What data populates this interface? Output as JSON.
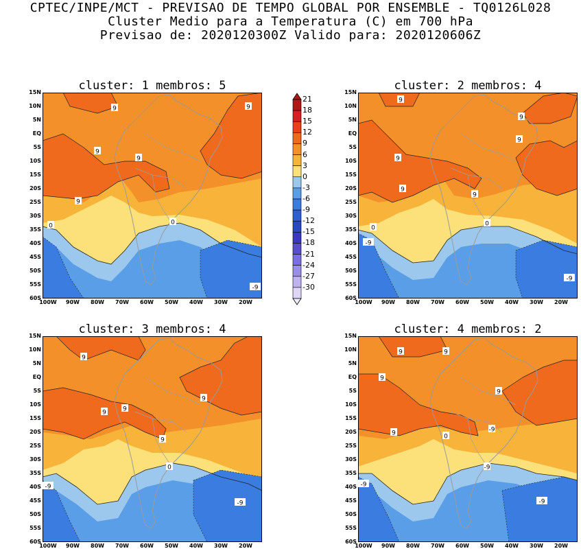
{
  "header": {
    "line1": "CPTEC/INPE/MCT - PREVISAO DE TEMPO GLOBAL POR ENSEMBLE - TQ0126L028",
    "line2": "Cluster Medio para a Temperatura (C) em 700 hPa",
    "line3": "Previsao de: 2020120300Z    Valido para: 2020120606Z"
  },
  "panels": [
    {
      "title": "cluster: 1   membros: 5",
      "contour_labels": [
        "9",
        "9",
        "9",
        "9",
        "9",
        "0",
        "0",
        "-9"
      ]
    },
    {
      "title": "cluster: 2   membros: 4",
      "contour_labels": [
        "9",
        "9",
        "9",
        "9",
        "9",
        "9",
        "0",
        "0",
        "-9",
        "-9"
      ]
    },
    {
      "title": "cluster: 3   membros: 4",
      "contour_labels": [
        "9",
        "9",
        "9",
        "9",
        "9",
        "0",
        "-9",
        "-9"
      ]
    },
    {
      "title": "cluster: 4   membros: 2",
      "contour_labels": [
        "9",
        "9",
        "9",
        "9",
        "9",
        "0",
        "-9",
        "-9"
      ]
    }
  ],
  "lat_ticks": [
    "15N",
    "10N",
    "5N",
    "EQ",
    "5S",
    "10S",
    "15S",
    "20S",
    "25S",
    "30S",
    "35S",
    "40S",
    "45S",
    "50S",
    "55S",
    "60S"
  ],
  "lon_ticks": [
    "100W",
    "90W",
    "80W",
    "70W",
    "60W",
    "50W",
    "40W",
    "30W",
    "20W"
  ],
  "colorbar": {
    "labels": [
      "21",
      "18",
      "15",
      "12",
      "9",
      "6",
      "3",
      "0",
      "-3",
      "-6",
      "-9",
      "-12",
      "-15",
      "-18",
      "-21",
      "-24",
      "-27",
      "-30"
    ],
    "colors": [
      "#b01818",
      "#d42020",
      "#e8401a",
      "#f06a1e",
      "#f3902a",
      "#f8b43a",
      "#fce07a",
      "#9cc8ee",
      "#5a9ee8",
      "#3a7ce0",
      "#2a62d4",
      "#2848c4",
      "#3a38c0",
      "#5a4ed0",
      "#7a6ee0",
      "#9a8ee8",
      "#beb2f0",
      "#ddd6f6"
    ]
  }
}
